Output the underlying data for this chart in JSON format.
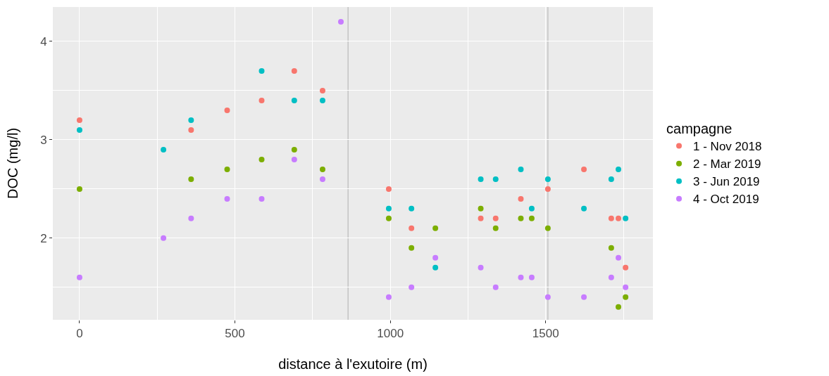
{
  "chart_data": {
    "type": "scatter",
    "xlabel": "distance à l'exutoire (m)",
    "ylabel": "DOC (mg/l)",
    "legend_title": "campagne",
    "x": [
      0,
      270,
      359,
      475,
      586,
      691,
      782,
      841,
      995,
      1068,
      1145,
      1291,
      1339,
      1420,
      1455,
      1507,
      1623,
      1711,
      1734,
      1757
    ],
    "series": [
      {
        "name": "1 - Nov 2018",
        "color": "#f8766d",
        "values": [
          3.2,
          null,
          3.1,
          3.3,
          3.4,
          3.7,
          3.5,
          null,
          2.5,
          2.1,
          null,
          2.2,
          2.2,
          2.4,
          null,
          2.5,
          2.7,
          2.2,
          2.2,
          1.7
        ]
      },
      {
        "name": "2 - Mar 2019",
        "color": "#7cae00",
        "values": [
          2.5,
          null,
          2.6,
          2.7,
          2.8,
          2.9,
          2.7,
          null,
          2.2,
          1.9,
          2.1,
          2.3,
          2.1,
          2.2,
          2.2,
          2.1,
          null,
          1.9,
          1.3,
          1.4
        ]
      },
      {
        "name": "3 - Jun 2019",
        "color": "#00bfc4",
        "values": [
          3.1,
          2.9,
          3.2,
          null,
          3.7,
          3.4,
          3.4,
          null,
          2.3,
          2.3,
          1.7,
          2.6,
          2.6,
          2.7,
          2.3,
          2.6,
          2.3,
          2.6,
          2.7,
          2.2
        ]
      },
      {
        "name": "4 - Oct 2019",
        "color": "#c77cff",
        "values": [
          1.6,
          2.0,
          2.2,
          2.4,
          2.4,
          2.8,
          2.6,
          4.2,
          1.4,
          1.5,
          1.8,
          1.7,
          1.5,
          1.6,
          1.6,
          1.4,
          1.4,
          1.6,
          1.8,
          1.5
        ]
      }
    ],
    "xlim": [
      -86,
      1845
    ],
    "xticks": [
      0,
      500,
      1000,
      1500
    ],
    "ylim": [
      1.17,
      4.35
    ],
    "yticks": [
      2,
      3,
      4
    ],
    "ref_lines": [
      {
        "axis": "x",
        "value": 864,
        "color": "#bebebe"
      },
      {
        "axis": "x",
        "value": 1507,
        "color": "#bebebe"
      }
    ],
    "grid": true,
    "legend": "right",
    "marker": "circle"
  }
}
